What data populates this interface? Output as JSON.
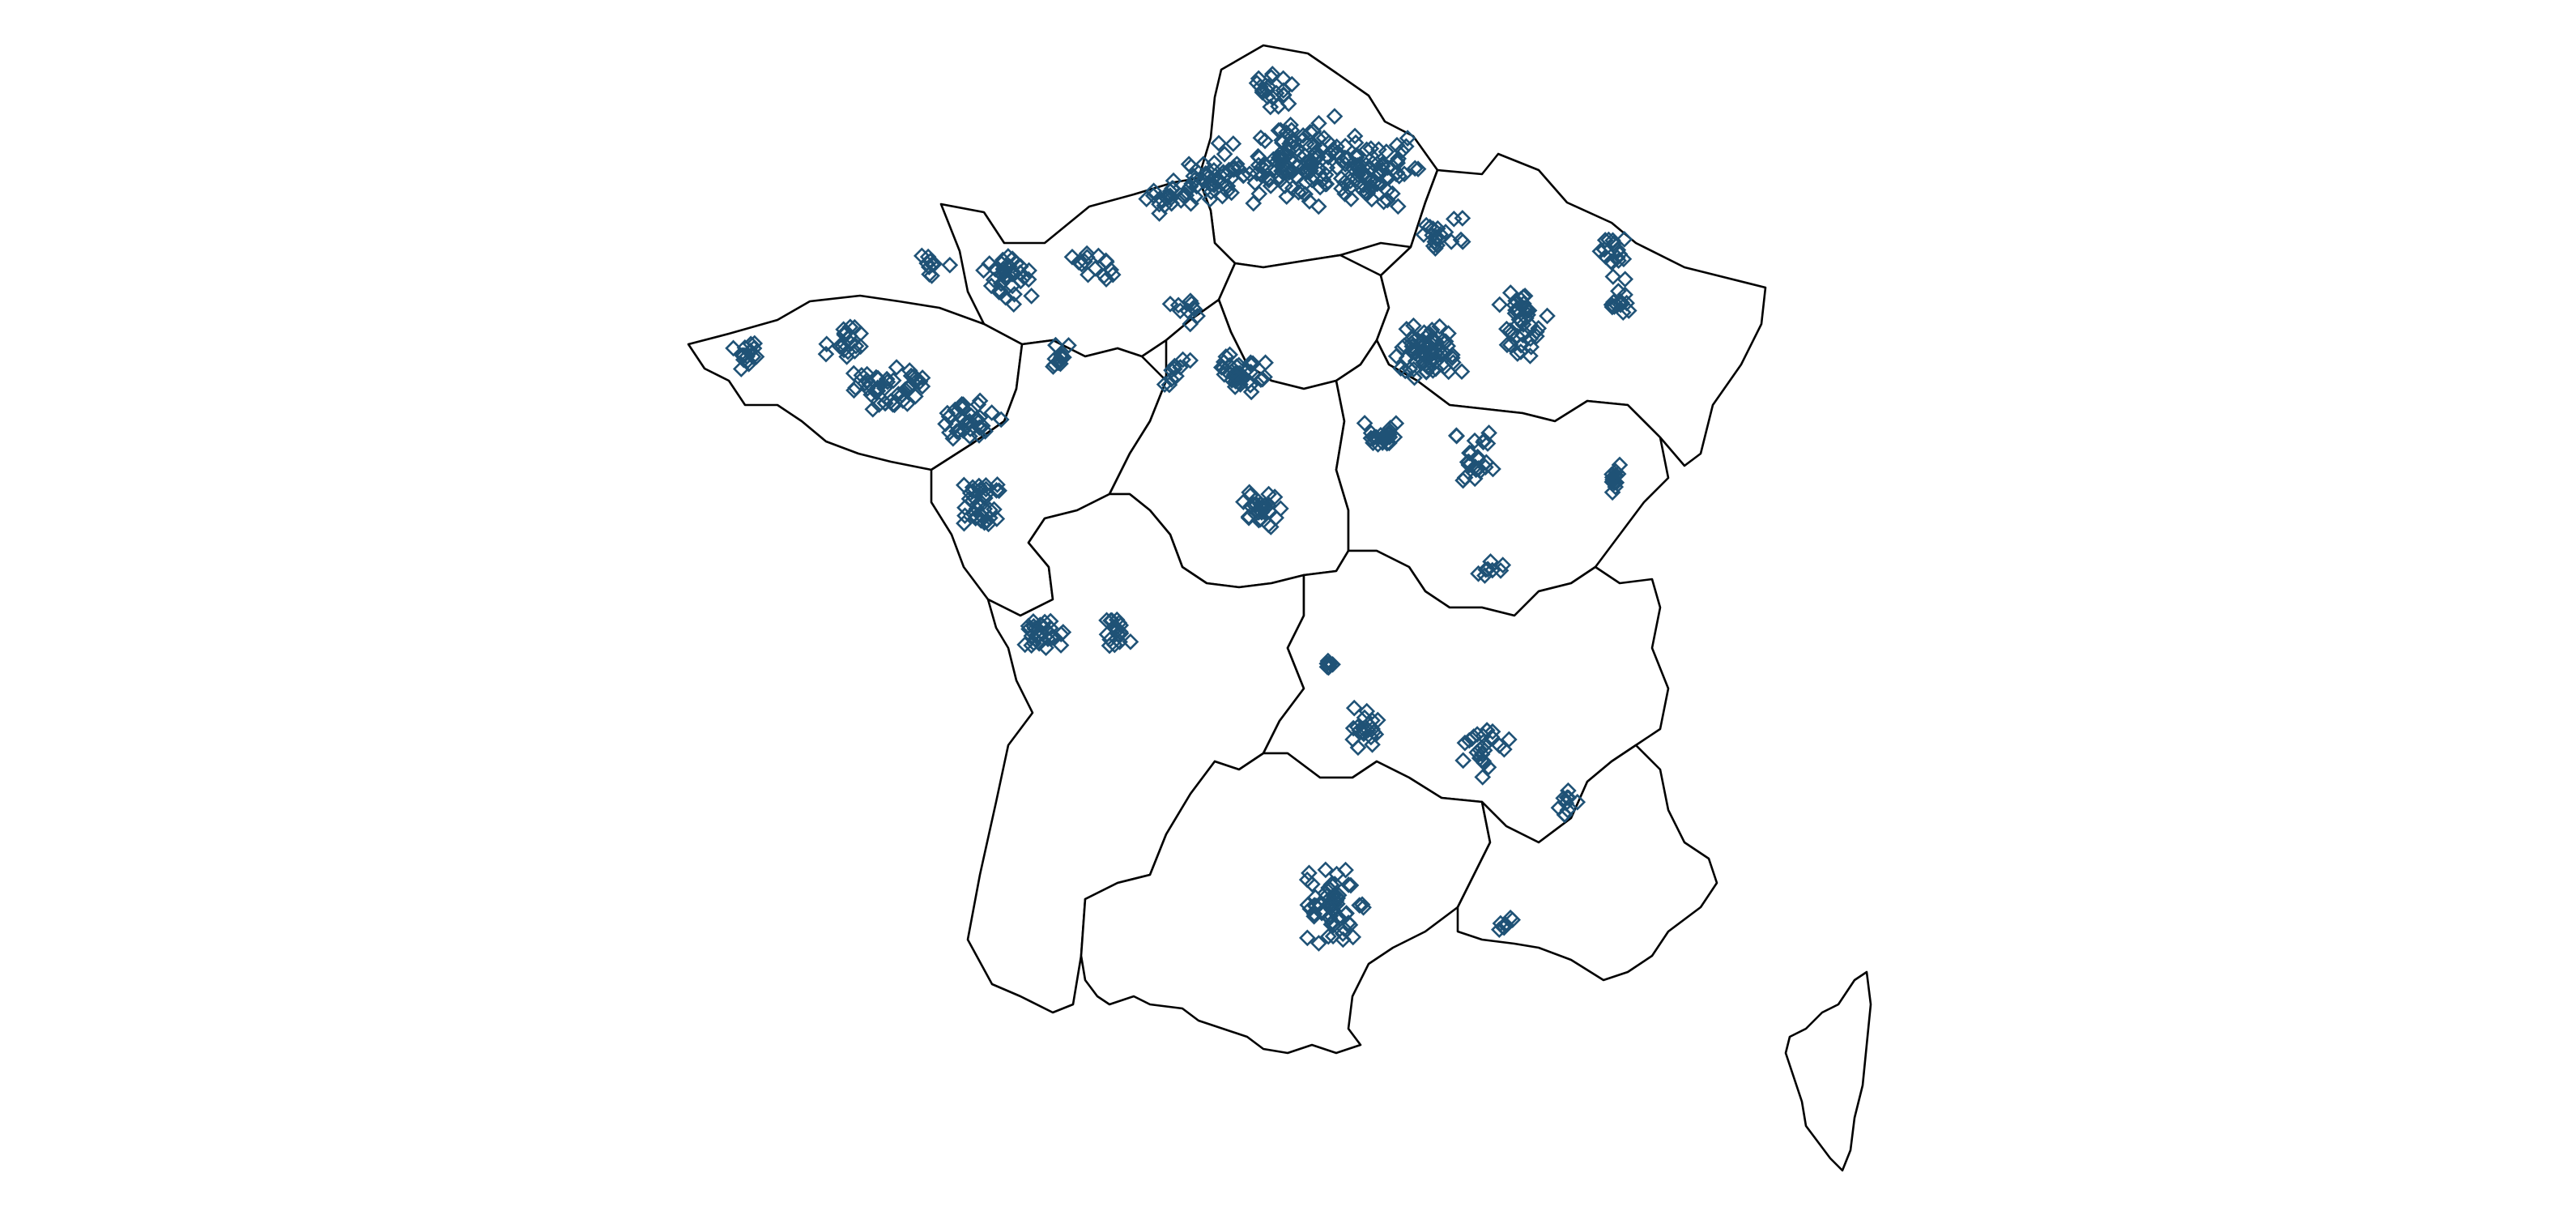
{
  "map": {
    "marker_shape": "diamond",
    "marker_color": "#1f5276",
    "outline_color": "#000000",
    "background_color": "#ffffff"
  }
}
